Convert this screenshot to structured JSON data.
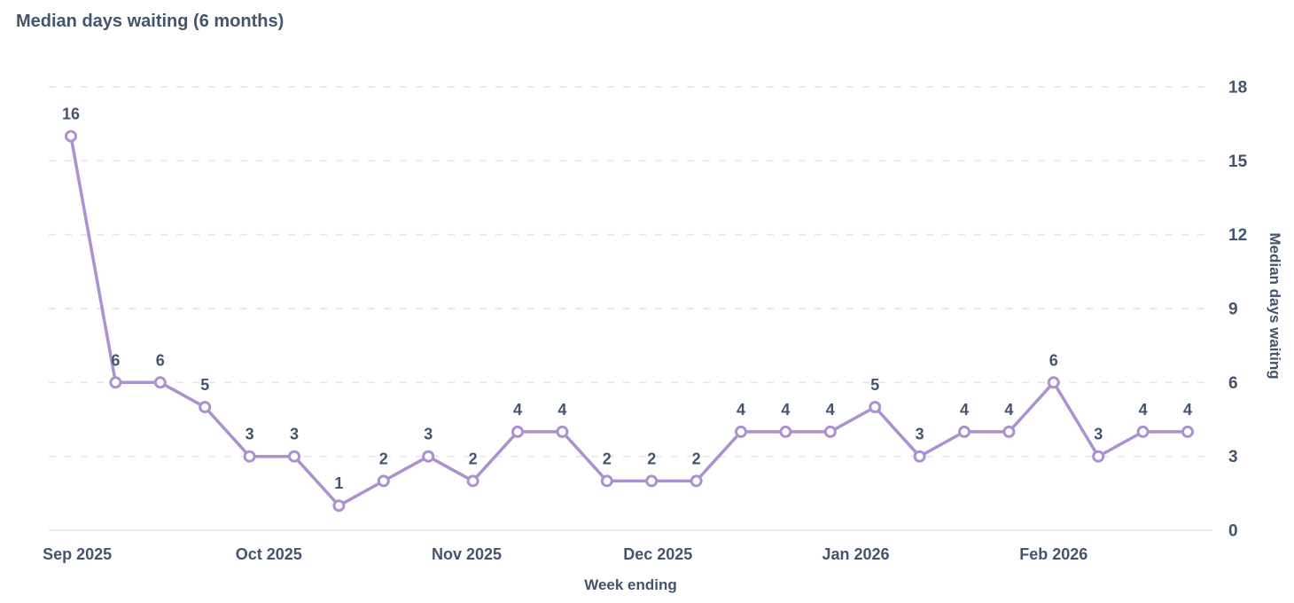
{
  "chart": {
    "title": "Median days waiting (6 months)"
  },
  "chart_data": {
    "type": "line",
    "title": "Median days waiting (6 months)",
    "xlabel": "Week ending",
    "ylabel": "Median days waiting",
    "x_tick_labels": [
      "Sep 2025",
      "Oct 2025",
      "Nov 2025",
      "Dec 2025",
      "Jan 2026",
      "Feb 2026"
    ],
    "x_tick_positions_weeks": [
      0.14,
      4.43,
      8.86,
      13.14,
      17.57,
      22.0
    ],
    "values": [
      16,
      6,
      6,
      5,
      3,
      3,
      1,
      2,
      3,
      2,
      4,
      4,
      2,
      2,
      2,
      4,
      4,
      4,
      5,
      3,
      4,
      4,
      6,
      3,
      4,
      4
    ],
    "y_ticks": [
      0,
      3,
      6,
      9,
      12,
      15,
      18
    ],
    "ylim": [
      0,
      18
    ],
    "grid": "horizontal-dashed",
    "legend": "none",
    "marker": "open-circle",
    "data_labels": true,
    "colors": {
      "line": "#ab91d1",
      "marker_fill": "#ffffff",
      "text": "#44546e",
      "gridline": "#e4e6ea",
      "axis_line": "#eaecef"
    }
  }
}
